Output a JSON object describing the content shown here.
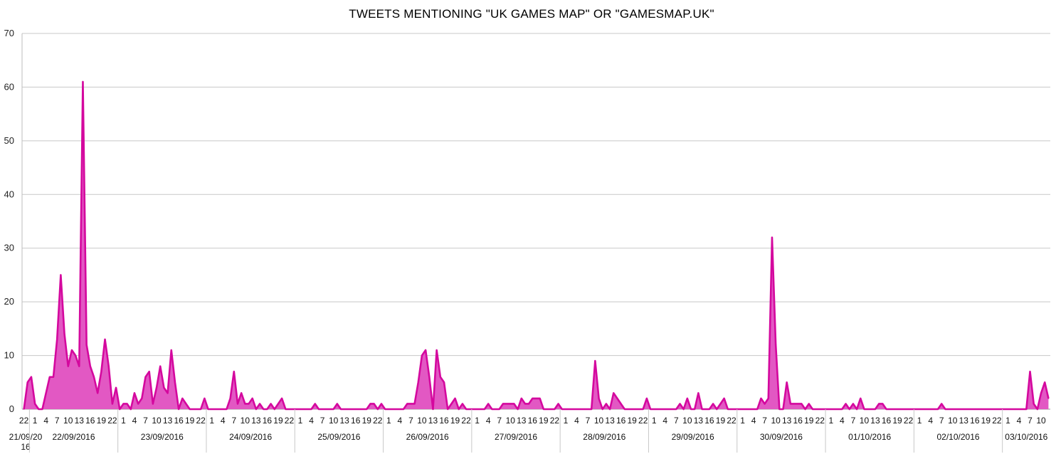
{
  "chart_data": {
    "type": "area",
    "title": "TWEETS MENTIONING \"UK GAMES MAP\" OR \"GAMESMAP.UK\"",
    "xlabel": "",
    "ylabel": "",
    "ylim": [
      0,
      70
    ],
    "yticks": [
      0,
      10,
      20,
      30,
      40,
      50,
      60,
      70
    ],
    "grid": true,
    "legend": "none",
    "color": "#d4089e",
    "fill_color": "#e04fc0",
    "interval_hours": 1,
    "groups": [
      {
        "date": "21/09/2016",
        "date_lines": [
          "21/09/20",
          "16"
        ],
        "start_hour": 22,
        "values": [
          0,
          5
        ]
      },
      {
        "date": "22/09/2016",
        "start_hour": 0,
        "values": [
          6,
          1,
          0,
          0,
          3,
          6,
          6,
          13,
          25,
          14,
          8,
          11,
          10,
          8,
          61,
          12,
          8,
          6,
          3,
          7,
          13,
          8,
          1,
          4
        ]
      },
      {
        "date": "23/09/2016",
        "start_hour": 0,
        "values": [
          0,
          1,
          1,
          0,
          3,
          1,
          2,
          6,
          7,
          1,
          4,
          8,
          4,
          3,
          11,
          5,
          0,
          2,
          1,
          0,
          0,
          0,
          0,
          2
        ]
      },
      {
        "date": "24/09/2016",
        "start_hour": 0,
        "values": [
          0,
          0,
          0,
          0,
          0,
          0,
          2,
          7,
          1,
          3,
          1,
          1,
          2,
          0,
          1,
          0,
          0,
          1,
          0,
          1,
          2,
          0,
          0,
          0
        ]
      },
      {
        "date": "25/09/2016",
        "start_hour": 0,
        "values": [
          0,
          0,
          0,
          0,
          0,
          1,
          0,
          0,
          0,
          0,
          0,
          1,
          0,
          0,
          0,
          0,
          0,
          0,
          0,
          0,
          1,
          1,
          0,
          1
        ]
      },
      {
        "date": "26/09/2016",
        "start_hour": 0,
        "values": [
          0,
          0,
          0,
          0,
          0,
          0,
          1,
          1,
          1,
          5,
          10,
          11,
          6,
          0,
          11,
          6,
          5,
          0,
          1,
          2,
          0,
          1,
          0,
          0
        ]
      },
      {
        "date": "27/09/2016",
        "start_hour": 0,
        "values": [
          0,
          0,
          0,
          0,
          1,
          0,
          0,
          0,
          1,
          1,
          1,
          1,
          0,
          2,
          1,
          1,
          2,
          2,
          2,
          0,
          0,
          0,
          0,
          1
        ]
      },
      {
        "date": "28/09/2016",
        "start_hour": 0,
        "values": [
          0,
          0,
          0,
          0,
          0,
          0,
          0,
          0,
          0,
          9,
          2,
          0,
          1,
          0,
          3,
          2,
          1,
          0,
          0,
          0,
          0,
          0,
          0,
          2
        ]
      },
      {
        "date": "29/09/2016",
        "start_hour": 0,
        "values": [
          0,
          0,
          0,
          0,
          0,
          0,
          0,
          0,
          1,
          0,
          2,
          0,
          0,
          3,
          0,
          0,
          0,
          1,
          0,
          1,
          2,
          0,
          0,
          0
        ]
      },
      {
        "date": "30/09/2016",
        "start_hour": 0,
        "values": [
          0,
          0,
          0,
          0,
          0,
          0,
          2,
          1,
          2,
          32,
          12,
          0,
          0,
          5,
          1,
          1,
          1,
          1,
          0,
          1,
          0,
          0,
          0,
          0
        ]
      },
      {
        "date": "01/10/2016",
        "start_hour": 0,
        "values": [
          0,
          0,
          0,
          0,
          0,
          1,
          0,
          1,
          0,
          2,
          0,
          0,
          0,
          0,
          1,
          1,
          0,
          0,
          0,
          0,
          0,
          0,
          0,
          0
        ]
      },
      {
        "date": "02/10/2016",
        "start_hour": 0,
        "values": [
          0,
          0,
          0,
          0,
          0,
          0,
          0,
          1,
          0,
          0,
          0,
          0,
          0,
          0,
          0,
          0,
          0,
          0,
          0,
          0,
          0,
          0,
          0,
          0
        ]
      },
      {
        "date": "03/10/2016",
        "start_hour": 0,
        "values": [
          0,
          0,
          0,
          0,
          0,
          0,
          0,
          7,
          1,
          0,
          3,
          5,
          2
        ]
      }
    ]
  }
}
